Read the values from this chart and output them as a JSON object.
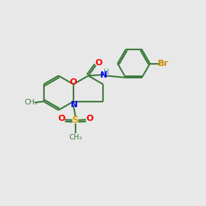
{
  "bg_color": "#e8e8e8",
  "atom_colors": {
    "C": "#3a7a3a",
    "N": "#0000ff",
    "O": "#ff0000",
    "S": "#ddaa00",
    "Br": "#cc8800",
    "H": "#4488aa"
  },
  "bond_color": "#3a7a3a",
  "figsize": [
    3.0,
    3.0
  ],
  "dpi": 100
}
